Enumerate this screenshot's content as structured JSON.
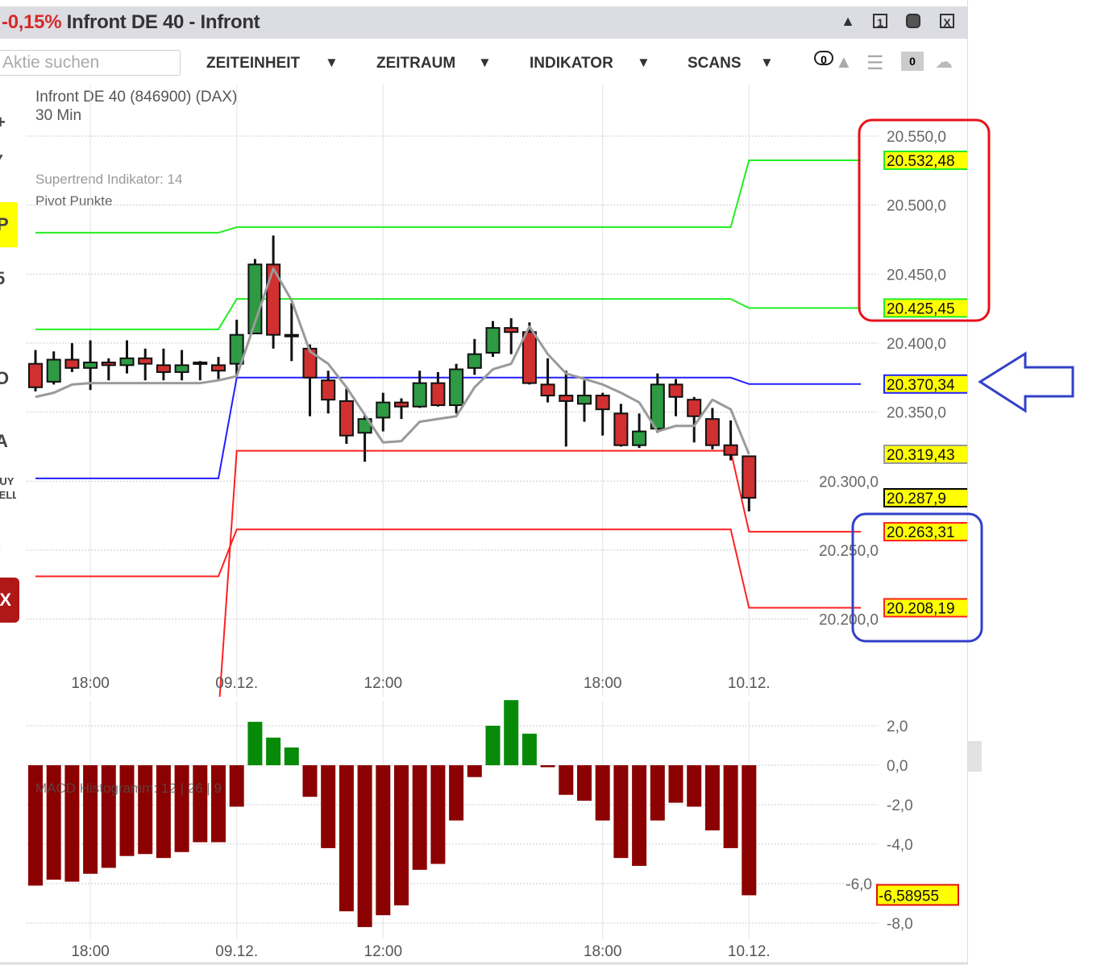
{
  "window": {
    "change": "-0,15%",
    "title": "Infront DE 40 - Infront",
    "change_color": "#d42a2a",
    "buttons": [
      {
        "icon": "bell-icon",
        "glyph": "🔔"
      },
      {
        "icon": "window-one-icon",
        "glyph": "1"
      },
      {
        "icon": "save-icon",
        "glyph": "■"
      },
      {
        "icon": "close-icon",
        "glyph": "X"
      }
    ]
  },
  "toolbar": {
    "search_placeholder": "Aktie suchen",
    "menus": [
      {
        "label": "ZEITEINHEIT",
        "arrow": "▼"
      },
      {
        "label": "ZEITRAUM",
        "arrow": "▼"
      },
      {
        "label": "INDIKATOR",
        "arrow": "▼"
      },
      {
        "label": "SCANS",
        "arrow": "▼"
      }
    ],
    "alerts_count": "0",
    "watchlist_count": "0"
  },
  "left_tools": [
    {
      "icon": "crosshair-icon",
      "glyph": "+"
    },
    {
      "icon": "line-tool-icon",
      "glyph": "/"
    },
    {
      "icon": "pivot-icon",
      "glyph": "P",
      "active": true
    },
    {
      "icon": "fibonacci-icon",
      "glyph": "5"
    },
    {
      "icon": "trend-line-icon",
      "glyph": "/"
    },
    {
      "icon": "circle-icon",
      "glyph": "O"
    },
    {
      "icon": "text-icon",
      "glyph": "A"
    },
    {
      "icon": "buy-sell-icon",
      "glyph": "BUY SELL"
    },
    {
      "icon": "arc-icon",
      "glyph": ")"
    },
    {
      "icon": "delete-icon",
      "glyph": "X"
    }
  ],
  "chart": {
    "instrument": "Infront DE 40 (846900) (DAX)",
    "interval": "30 Min",
    "indicator_1": "Supertrend Indikator: 14",
    "indicator_2": "Pivot Punkte",
    "macd_label": "MACD Histogramm: 12 | 26 | 9"
  },
  "chart_data": [
    {
      "type": "candlestick",
      "ylim": [
        20200,
        20550
      ],
      "y_ticks": [
        {
          "value": 20550,
          "label": "20.550,0"
        },
        {
          "value": 20500,
          "label": "20.500,0"
        },
        {
          "value": 20450,
          "label": "20.450,0"
        },
        {
          "value": 20400,
          "label": "20.400,0"
        },
        {
          "value": 20350,
          "label": "20.350,0"
        },
        {
          "value": 20300,
          "label": "20.300,0"
        },
        {
          "value": 20250,
          "label": "20.250,0"
        },
        {
          "value": 20200,
          "label": "20.200,0"
        }
      ],
      "x_ticks": [
        {
          "bar": 3,
          "label": "18:00"
        },
        {
          "bar": 11,
          "label": "09.12."
        },
        {
          "bar": 19,
          "label": "12:00"
        },
        {
          "bar": 31,
          "label": "18:00"
        },
        {
          "bar": 39,
          "label": "10.12."
        }
      ],
      "grid": true,
      "ohlc_fields": [
        "open",
        "high",
        "low",
        "close"
      ],
      "candles": [
        [
          20385,
          20395,
          20365,
          20368
        ],
        [
          20372,
          20394,
          20370,
          20388
        ],
        [
          20388,
          20400,
          20379,
          20382
        ],
        [
          20382,
          20402,
          20366,
          20386
        ],
        [
          20386,
          20389,
          20373,
          20384
        ],
        [
          20384,
          20402,
          20378,
          20389
        ],
        [
          20389,
          20396,
          20373,
          20385
        ],
        [
          20384,
          20396,
          20373,
          20379
        ],
        [
          20379,
          20395,
          20373,
          20384
        ],
        [
          20386,
          20387,
          20373,
          20386
        ],
        [
          20384,
          20390,
          20374,
          20380
        ],
        [
          20385,
          20417,
          20377,
          20406
        ],
        [
          20407,
          20461,
          20407,
          20457
        ],
        [
          20457,
          20478,
          20396,
          20406
        ],
        [
          20406,
          20429,
          20387,
          20406
        ],
        [
          20396,
          20399,
          20347,
          20375
        ],
        [
          20373,
          20380,
          20349,
          20359
        ],
        [
          20358,
          20367,
          20327,
          20333
        ],
        [
          20335,
          20348,
          20314,
          20345
        ],
        [
          20346,
          20364,
          20336,
          20357
        ],
        [
          20357,
          20360,
          20345,
          20354
        ],
        [
          20354,
          20380,
          20353,
          20371
        ],
        [
          20371,
          20379,
          20354,
          20355
        ],
        [
          20355,
          20385,
          20349,
          20381
        ],
        [
          20382,
          20403,
          20377,
          20392
        ],
        [
          20393,
          20416,
          20390,
          20411
        ],
        [
          20411,
          20418,
          20392,
          20408
        ],
        [
          20408,
          20415,
          20370,
          20371
        ],
        [
          20370,
          20389,
          20357,
          20362
        ],
        [
          20362,
          20380,
          20325,
          20358
        ],
        [
          20356,
          20373,
          20343,
          20362
        ],
        [
          20362,
          20364,
          20333,
          20352
        ],
        [
          20349,
          20356,
          20325,
          20326
        ],
        [
          20326,
          20349,
          20324,
          20336
        ],
        [
          20338,
          20378,
          20335,
          20370
        ],
        [
          20370,
          20374,
          20347,
          20361
        ],
        [
          20359,
          20361,
          20328,
          20347
        ],
        [
          20345,
          20353,
          20323,
          20326
        ],
        [
          20326,
          20344,
          20315,
          20319
        ],
        [
          20318,
          20318,
          20278,
          20287.9
        ]
      ],
      "supertrend": [
        20361,
        20364,
        20370,
        20371,
        20371,
        20371,
        20371,
        20371,
        20371,
        20371,
        20373,
        20376,
        20415,
        20454,
        20431,
        20394,
        20385,
        20368,
        20348,
        20328,
        20329,
        20343,
        20345,
        20347,
        20368,
        20381,
        20385,
        20412,
        20392,
        20378,
        20374,
        20370,
        20364,
        20357,
        20336,
        20340,
        20340,
        20359,
        20352,
        20319.43
      ],
      "pivot_segments": [
        {
          "from": 0,
          "to": 10
        },
        {
          "from": 11,
          "to": 38
        },
        {
          "from": 39,
          "to": 45
        }
      ],
      "pivot_lines": [
        {
          "color": "#22ee22",
          "values": [
            20480,
            20484,
            20532.48
          ]
        },
        {
          "color": "#22ee22",
          "values": [
            20410,
            20432,
            20425.45
          ]
        },
        {
          "color": "#2020ff",
          "values": [
            20302,
            20375,
            20370.34
          ]
        },
        {
          "color": "#ff2020",
          "values": [
            20130,
            20322,
            20263.31
          ]
        },
        {
          "color": "#ff2020",
          "values": [
            20231,
            20265,
            20208.19
          ]
        }
      ],
      "value_labels": [
        {
          "value": 20532.48,
          "label": "20.532,48",
          "border": "#22ee22"
        },
        {
          "value": 20425.45,
          "label": "20.425,45",
          "border": "#22ee22"
        },
        {
          "value": 20370.34,
          "label": "20.370,34",
          "border": "#2020ff"
        },
        {
          "value": 20319.43,
          "label": "20.319,43",
          "border": "#999999"
        },
        {
          "value": 20287.9,
          "label": "20.287,9",
          "border": "#000000"
        },
        {
          "value": 20263.31,
          "label": "20.263,31",
          "border": "#ff2020"
        },
        {
          "value": 20208.19,
          "label": "20.208,19",
          "border": "#ff2020"
        }
      ],
      "colors": {
        "up": "#2e9a44",
        "down": "#d03030",
        "supertrend": "#9a9a9a",
        "label_bg": "#ffff00"
      }
    },
    {
      "type": "bar",
      "title": "MACD Histogramm: 12 | 26 | 9",
      "ylim": [
        -8.5,
        3.5
      ],
      "y_ticks": [
        {
          "value": 2,
          "label": "2,0"
        },
        {
          "value": 0,
          "label": "0,0"
        },
        {
          "value": -2,
          "label": "-2,0"
        },
        {
          "value": -4,
          "label": "-4,0"
        },
        {
          "value": -6,
          "label": "-6,0"
        },
        {
          "value": -8,
          "label": "-8,0"
        }
      ],
      "x_ticks": [
        {
          "bar": 3,
          "label": "18:00"
        },
        {
          "bar": 11,
          "label": "09.12."
        },
        {
          "bar": 19,
          "label": "12:00"
        },
        {
          "bar": 31,
          "label": "18:00"
        },
        {
          "bar": 39,
          "label": "10.12."
        }
      ],
      "values": [
        -6.1,
        -5.8,
        -5.9,
        -5.5,
        -5.2,
        -4.6,
        -4.5,
        -4.7,
        -4.4,
        -3.9,
        -3.9,
        -2.1,
        2.2,
        1.4,
        0.9,
        -1.6,
        -4.2,
        -7.4,
        -8.2,
        -7.6,
        -7.1,
        -5.3,
        -5.0,
        -2.8,
        -0.6,
        2.0,
        3.3,
        1.6,
        -0.1,
        -1.5,
        -1.8,
        -2.8,
        -4.7,
        -5.1,
        -2.8,
        -1.9,
        -2.1,
        -3.3,
        -4.2,
        -6.58955
      ],
      "last_label": "-6,58955",
      "colors": {
        "positive": "#078a07",
        "negative": "#8b0000"
      }
    }
  ],
  "annotations": [
    {
      "shape": "rounded-rect",
      "color": "#e8101a"
    },
    {
      "shape": "arrow-left",
      "color": "#3040c8"
    },
    {
      "shape": "rounded-rect",
      "color": "#3040c8"
    }
  ]
}
